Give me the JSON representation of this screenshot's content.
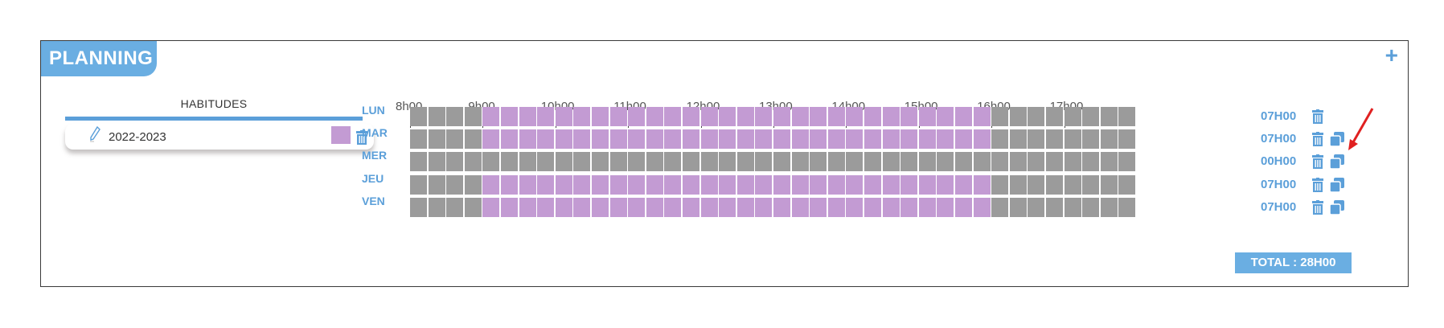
{
  "panel": {
    "title": "PLANNING",
    "add_label": "+"
  },
  "habitudes": {
    "header": "HABITUDES",
    "items": [
      {
        "label": "2022-2023",
        "color": "#c39bd3",
        "icons": [
          "pencil-icon",
          "trash-icon"
        ]
      }
    ]
  },
  "timeline": {
    "hours": [
      "8h00",
      "9h00",
      "10h00",
      "11h00",
      "12h00",
      "13h00",
      "14h00",
      "15h00",
      "16h00",
      "17h00"
    ],
    "slots_per_hour": 4,
    "slot_count": 40
  },
  "days": [
    {
      "label": "LUN",
      "total": "07H00",
      "active_from": "9h00",
      "active_to": "16h00",
      "icons": [
        "trash-icon"
      ]
    },
    {
      "label": "MAR",
      "total": "07H00",
      "active_from": "9h00",
      "active_to": "16h00",
      "icons": [
        "trash-icon",
        "duplicate-icon"
      ]
    },
    {
      "label": "MER",
      "total": "00H00",
      "active_from": null,
      "active_to": null,
      "icons": [
        "trash-icon",
        "duplicate-icon"
      ]
    },
    {
      "label": "JEU",
      "total": "07H00",
      "active_from": "9h00",
      "active_to": "16h00",
      "icons": [
        "trash-icon",
        "duplicate-icon"
      ]
    },
    {
      "label": "VEN",
      "total": "07H00",
      "active_from": "9h00",
      "active_to": "16h00",
      "icons": [
        "trash-icon",
        "duplicate-icon"
      ]
    }
  ],
  "total": {
    "label": "TOTAL : 28H00"
  },
  "colors": {
    "accent": "#5b9fd9",
    "header_bg": "#6aaee2",
    "slot_active": "#c39bd3",
    "slot_inactive": "#9b9b9b",
    "annotation_arrow": "#e02020"
  }
}
